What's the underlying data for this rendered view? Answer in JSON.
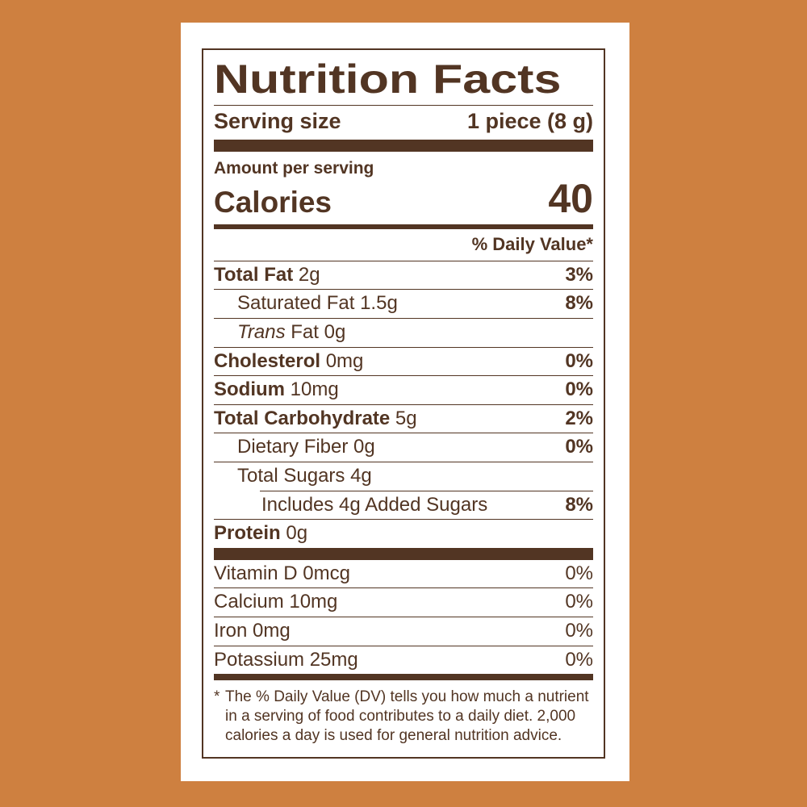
{
  "colors": {
    "background": "#CE8040",
    "card": "#FFFFFF",
    "ink": "#523523"
  },
  "label": {
    "title": "Nutrition Facts",
    "serving_size_label": "Serving size",
    "serving_size_value": "1 piece (8 g)",
    "amount_per_serving": "Amount per serving",
    "calories_label": "Calories",
    "calories_value": "40",
    "daily_value_header": "% Daily Value*",
    "nutrients": [
      {
        "bold": "Total Fat",
        "text": " 2g",
        "dv": "3%",
        "indent": 0
      },
      {
        "text": "Saturated Fat 1.5g",
        "dv": "8%",
        "indent": 1
      },
      {
        "italic": "Trans",
        "text": " Fat 0g",
        "dv": "",
        "indent": 1
      },
      {
        "bold": "Cholesterol",
        "text": " 0mg",
        "dv": "0%",
        "indent": 0
      },
      {
        "bold": "Sodium",
        "text": " 10mg",
        "dv": "0%",
        "indent": 0
      },
      {
        "bold": "Total Carbohydrate",
        "text": " 5g",
        "dv": "2%",
        "indent": 0
      },
      {
        "text": "Dietary Fiber 0g",
        "dv": "0%",
        "indent": 1
      },
      {
        "text": "Total Sugars 4g",
        "dv": "",
        "indent": 1
      },
      {
        "text": "Includes 4g Added Sugars",
        "dv": "8%",
        "indent": 2,
        "rule_indent": true
      },
      {
        "bold": "Protein",
        "text": " 0g",
        "dv": "",
        "indent": 0
      }
    ],
    "micronutrients": [
      {
        "text": "Vitamin D 0mcg",
        "dv": "0%"
      },
      {
        "text": "Calcium 10mg",
        "dv": "0%"
      },
      {
        "text": "Iron 0mg",
        "dv": "0%"
      },
      {
        "text": "Potassium 25mg",
        "dv": "0%"
      }
    ],
    "footnote_symbol": "*",
    "footnote": "The % Daily Value (DV) tells you how much a nutrient in a serving of food contributes to a daily diet. 2,000 calories a day is used for general nutrition advice."
  }
}
